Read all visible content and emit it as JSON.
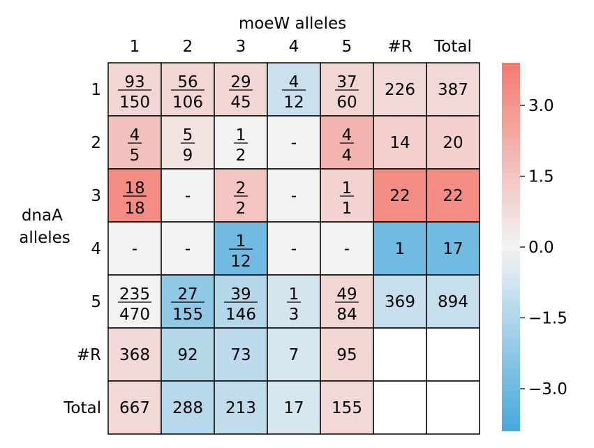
{
  "chart_data": {
    "type": "heatmap",
    "xlabel": "moeW alleles",
    "ylabel_lines": [
      "dnaA",
      "alleles"
    ],
    "col_labels": [
      "1",
      "2",
      "3",
      "4",
      "5",
      "#R",
      "Total"
    ],
    "row_labels": [
      "1",
      "2",
      "3",
      "4",
      "5",
      "#R",
      "Total"
    ],
    "cells": [
      [
        {
          "num": "93",
          "den": "150",
          "score": 0.9
        },
        {
          "num": "56",
          "den": "106",
          "score": 0.9
        },
        {
          "num": "29",
          "den": "45",
          "score": 0.9
        },
        {
          "num": "4",
          "den": "12",
          "score": -0.9
        },
        {
          "num": "37",
          "den": "60",
          "score": 0.9
        },
        {
          "text": "226",
          "score": 0.8
        },
        {
          "text": "387",
          "score": 0.8
        }
      ],
      [
        {
          "num": "4",
          "den": "5",
          "score": 1.6
        },
        {
          "num": "5",
          "den": "9",
          "score": 0.5
        },
        {
          "num": "1",
          "den": "2",
          "score": 0.0
        },
        {
          "text": "-",
          "score": 0.0
        },
        {
          "num": "4",
          "den": "4",
          "score": 2.0
        },
        {
          "text": "14",
          "score": 1.1
        },
        {
          "text": "20",
          "score": 1.1
        }
      ],
      [
        {
          "num": "18",
          "den": "18",
          "score": 3.3
        },
        {
          "text": "-",
          "score": 0.0
        },
        {
          "num": "2",
          "den": "2",
          "score": 1.5
        },
        {
          "text": "-",
          "score": 0.0
        },
        {
          "num": "1",
          "den": "1",
          "score": 1.0
        },
        {
          "text": "22",
          "score": 3.3
        },
        {
          "text": "22",
          "score": 3.3
        }
      ],
      [
        {
          "text": "-",
          "score": 0.0
        },
        {
          "text": "-",
          "score": 0.0
        },
        {
          "num": "1",
          "den": "12",
          "score": -2.9
        },
        {
          "text": "-",
          "score": 0.0
        },
        {
          "text": "-",
          "score": 0.0
        },
        {
          "text": "1",
          "score": -2.9
        },
        {
          "text": "17",
          "score": -2.9
        }
      ],
      [
        {
          "num": "235",
          "den": "470",
          "score": 0.0
        },
        {
          "num": "27",
          "den": "155",
          "score": -2.2
        },
        {
          "num": "39",
          "den": "146",
          "score": -1.4
        },
        {
          "num": "1",
          "den": "3",
          "score": -0.7
        },
        {
          "num": "49",
          "den": "84",
          "score": 0.9
        },
        {
          "text": "369",
          "score": -1.0
        },
        {
          "text": "894",
          "score": -1.0
        }
      ],
      [
        {
          "text": "368",
          "score": 0.8
        },
        {
          "text": "92",
          "score": -1.4
        },
        {
          "text": "73",
          "score": -1.2
        },
        {
          "text": "7",
          "score": -0.6
        },
        {
          "text": "95",
          "score": 0.9
        },
        {
          "text": "",
          "score": null
        },
        {
          "text": "",
          "score": null
        }
      ],
      [
        {
          "text": "667",
          "score": 0.8
        },
        {
          "text": "288",
          "score": -1.3
        },
        {
          "text": "213",
          "score": -1.1
        },
        {
          "text": "17",
          "score": -0.6
        },
        {
          "text": "155",
          "score": 0.8
        },
        {
          "text": "",
          "score": null
        },
        {
          "text": "",
          "score": null
        }
      ]
    ],
    "colorbar": {
      "vmin": -3.9,
      "vmax": 3.9,
      "ticks": [
        3.0,
        1.5,
        0.0,
        -1.5,
        -3.0
      ],
      "tick_labels": [
        "3.0",
        "1.5",
        "0.0",
        "−1.5",
        "−3.0"
      ],
      "colors": {
        "positive": "#f47a70",
        "neutral": "#f2f2f2",
        "negative": "#45a8dd"
      }
    }
  }
}
